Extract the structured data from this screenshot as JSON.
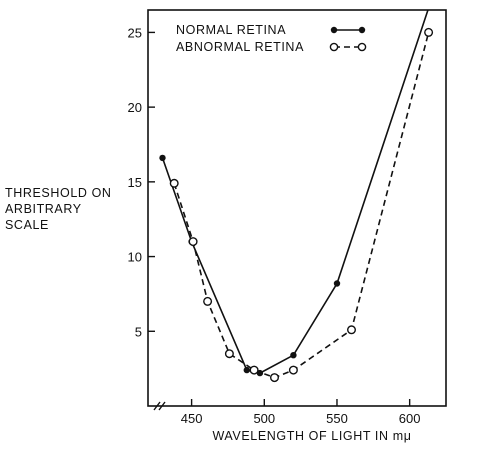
{
  "chart_data": {
    "type": "line",
    "title": "",
    "xlabel": "WAVELENGTH OF LIGHT IN mμ",
    "ylabel": [
      "THRESHOLD ON",
      "ARBITRARY",
      "SCALE"
    ],
    "xlim": [
      420,
      625
    ],
    "ylim": [
      0,
      26.5
    ],
    "x_axis_break": true,
    "x_ticks": [
      450,
      500,
      550,
      600
    ],
    "y_ticks": [
      5,
      10,
      15,
      20,
      25
    ],
    "grid": false,
    "legend_position": "top-left",
    "series": [
      {
        "name": "NORMAL RETINA",
        "style": "solid",
        "marker": "filled-circle",
        "color": "#111111",
        "points": [
          [
            430,
            16.6
          ],
          [
            450,
            11.0
          ],
          [
            488,
            2.4
          ],
          [
            497,
            2.2
          ],
          [
            520,
            3.4
          ],
          [
            550,
            8.2
          ],
          [
            616,
            27.5
          ]
        ],
        "marked_points": [
          [
            430,
            16.6
          ],
          [
            450,
            11.0
          ],
          [
            488,
            2.4
          ],
          [
            497,
            2.2
          ],
          [
            520,
            3.4
          ],
          [
            550,
            8.2
          ]
        ]
      },
      {
        "name": "ABNORMAL RETINA",
        "style": "dashed",
        "marker": "open-circle",
        "color": "#111111",
        "points": [
          [
            438,
            14.9
          ],
          [
            451,
            11.0
          ],
          [
            461,
            7.0
          ],
          [
            476,
            3.5
          ],
          [
            493,
            2.4
          ],
          [
            507,
            1.9
          ],
          [
            520,
            2.4
          ],
          [
            560,
            5.1
          ],
          [
            613,
            25.0
          ]
        ],
        "marked_points": [
          [
            438,
            14.9
          ],
          [
            451,
            11.0
          ],
          [
            461,
            7.0
          ],
          [
            476,
            3.5
          ],
          [
            493,
            2.4
          ],
          [
            507,
            1.9
          ],
          [
            520,
            2.4
          ],
          [
            560,
            5.1
          ],
          [
            613,
            25.0
          ]
        ]
      }
    ]
  }
}
